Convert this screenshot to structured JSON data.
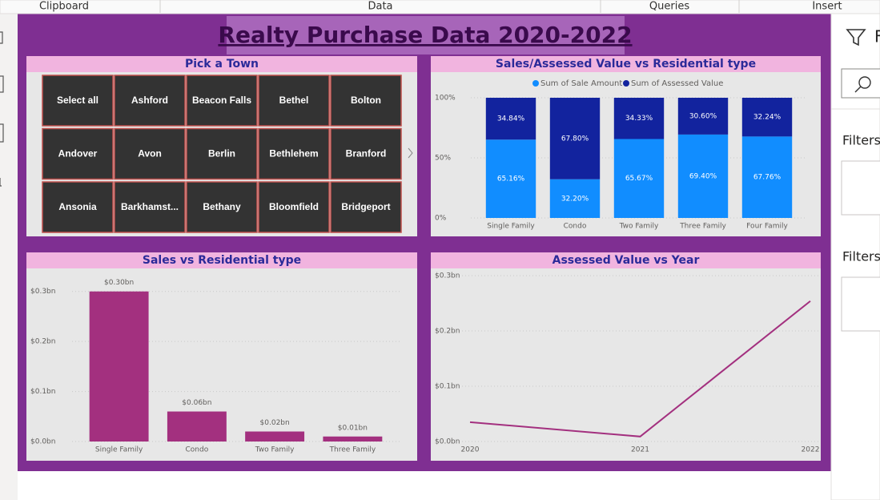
{
  "ribbon": {
    "groups": [
      "Clipboard",
      "Data",
      "Queries",
      "Insert"
    ]
  },
  "title": "Realty Purchase Data 2020-2022",
  "slicer": {
    "title": "Pick a Town",
    "items": [
      "Select all",
      "Ashford",
      "Beacon Falls",
      "Bethel",
      "Bolton",
      "Andover",
      "Avon",
      "Berlin",
      "Bethlehem",
      "Branford",
      "Ansonia",
      "Barkhamst...",
      "Bethany",
      "Bloomfield",
      "Bridgeport"
    ]
  },
  "filters_pane": {
    "heading": "F",
    "sections": [
      "Filters",
      "Filters"
    ]
  },
  "chart_data": [
    {
      "type": "stacked_bar",
      "title": "Sales/Assessed Value vs Residential type",
      "categories": [
        "Single Family",
        "Condo",
        "Two Family",
        "Three Family",
        "Four Family"
      ],
      "series": [
        {
          "name": "Sum of Sale Amount",
          "color": "#118dff",
          "values": [
            65.16,
            32.2,
            65.67,
            69.4,
            67.76
          ],
          "value_labels": [
            "65.16%",
            "32.20%",
            "65.67%",
            "69.40%",
            "67.76%"
          ]
        },
        {
          "name": "Sum of Assessed Value",
          "color": "#12239e",
          "values": [
            34.84,
            67.8,
            34.33,
            30.6,
            32.24
          ],
          "value_labels": [
            "34.84%",
            "67.80%",
            "34.33%",
            "30.60%",
            "32.24%"
          ]
        }
      ],
      "ylim": [
        0,
        100
      ],
      "yticks": [
        {
          "value": 0,
          "label": "0%"
        },
        {
          "value": 50,
          "label": "50%"
        },
        {
          "value": 100,
          "label": "100%"
        }
      ],
      "grid": true
    },
    {
      "type": "bar",
      "title": "Sales vs Residential type",
      "categories": [
        "Single Family",
        "Condo",
        "Two Family",
        "Three Family"
      ],
      "values": [
        0.3,
        0.06,
        0.02,
        0.01
      ],
      "value_labels": [
        "$0.30bn",
        "$0.06bn",
        "$0.02bn",
        "$0.01bn"
      ],
      "color": "#a3307f",
      "ylim": [
        0,
        0.33
      ],
      "yticks": [
        {
          "value": 0,
          "label": "$0.0bn"
        },
        {
          "value": 0.1,
          "label": "$0.1bn"
        },
        {
          "value": 0.2,
          "label": "$0.2bn"
        },
        {
          "value": 0.3,
          "label": "$0.3bn"
        }
      ],
      "grid": true
    },
    {
      "type": "line",
      "title": "Assessed Value vs Year",
      "x": [
        2020,
        2021,
        2022
      ],
      "values": [
        0.035,
        0.009,
        0.254
      ],
      "color": "#a3307f",
      "xlim": [
        2020,
        2022
      ],
      "xticks": [
        2020,
        2021,
        2022
      ],
      "ylim": [
        0,
        0.3
      ],
      "yticks": [
        {
          "value": 0,
          "label": "$0.0bn"
        },
        {
          "value": 0.1,
          "label": "$0.1bn"
        },
        {
          "value": 0.2,
          "label": "$0.2bn"
        },
        {
          "value": 0.3,
          "label": "$0.3bn"
        }
      ],
      "grid": true
    }
  ]
}
